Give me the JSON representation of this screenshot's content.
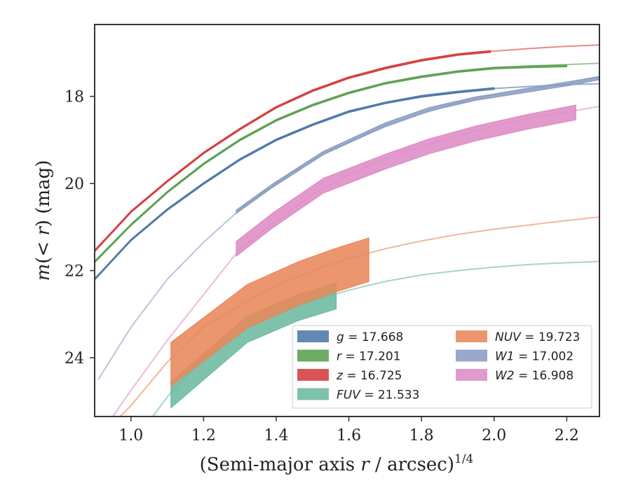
{
  "chart_data": {
    "type": "line",
    "xlabel": "(Semi-major axis r / arcsec)",
    "xlabel_italic": "r",
    "xlabel_parts": [
      "(Semi-major axis ",
      "r",
      " / arcsec)"
    ],
    "xlabel_superscript": "1/4",
    "ylabel_parts": [
      "m",
      "(< ",
      "r",
      ") (mag)"
    ],
    "ylabel": "m(< r) (mag)",
    "xlim": [
      0.9,
      2.29
    ],
    "ylim": [
      25.35,
      16.35
    ],
    "y_inverted": true,
    "xticks": [
      1.0,
      1.2,
      1.4,
      1.6,
      1.8,
      2.0,
      2.2
    ],
    "xtick_labels": [
      "1.0",
      "1.2",
      "1.4",
      "1.6",
      "1.8",
      "2.0",
      "2.2"
    ],
    "yticks": [
      18,
      20,
      22,
      24
    ],
    "ytick_labels": [
      "18",
      "20",
      "22",
      "24"
    ],
    "grid": false,
    "legend_position": "lower-right",
    "series": [
      {
        "name": "g = 17.668",
        "name_var": "g",
        "name_value": "17.668",
        "color": "#4c78a8",
        "model_x": [
          0.9,
          1.0,
          1.1,
          1.2,
          1.3,
          1.4,
          1.5,
          1.6,
          1.7,
          1.8,
          1.9,
          2.0,
          2.1,
          2.2,
          2.29
        ],
        "model_y": [
          22.2,
          21.3,
          20.6,
          20.0,
          19.45,
          19.0,
          18.65,
          18.35,
          18.15,
          18.0,
          17.9,
          17.82,
          17.77,
          17.73,
          17.71
        ],
        "obs_x": [
          0.9,
          1.0,
          1.1,
          1.2,
          1.3,
          1.4,
          1.5,
          1.6,
          1.7,
          1.8,
          1.9,
          2.0
        ],
        "obs_y": [
          22.2,
          21.3,
          20.6,
          20.0,
          19.45,
          19.0,
          18.65,
          18.35,
          18.15,
          18.0,
          17.9,
          17.82
        ],
        "obs_err": 0.02
      },
      {
        "name": "r = 17.201",
        "name_var": "r",
        "name_value": "17.201",
        "color": "#59a14f",
        "model_x": [
          0.9,
          1.0,
          1.1,
          1.2,
          1.3,
          1.4,
          1.5,
          1.6,
          1.7,
          1.8,
          1.9,
          2.0,
          2.1,
          2.2,
          2.29
        ],
        "model_y": [
          21.8,
          20.95,
          20.2,
          19.55,
          19.0,
          18.55,
          18.2,
          17.92,
          17.7,
          17.55,
          17.43,
          17.35,
          17.3,
          17.27,
          17.24
        ],
        "obs_x": [
          0.9,
          1.0,
          1.1,
          1.2,
          1.3,
          1.4,
          1.5,
          1.6,
          1.7,
          1.8,
          1.9,
          2.0,
          2.1,
          2.2
        ],
        "obs_y": [
          21.8,
          20.95,
          20.2,
          19.55,
          19.0,
          18.55,
          18.2,
          17.92,
          17.7,
          17.55,
          17.43,
          17.35,
          17.32,
          17.3
        ],
        "obs_err": 0.02
      },
      {
        "name": "z = 16.725",
        "name_var": "z",
        "name_value": "16.725",
        "color": "#d43d3d",
        "model_x": [
          0.9,
          1.0,
          1.1,
          1.2,
          1.3,
          1.4,
          1.5,
          1.6,
          1.7,
          1.8,
          1.9,
          2.0,
          2.1,
          2.2,
          2.29
        ],
        "model_y": [
          21.55,
          20.65,
          19.95,
          19.3,
          18.75,
          18.25,
          17.87,
          17.57,
          17.35,
          17.17,
          17.04,
          16.96,
          16.9,
          16.85,
          16.82
        ],
        "obs_x": [
          0.9,
          1.0,
          1.1,
          1.2,
          1.3,
          1.4,
          1.5,
          1.6,
          1.7,
          1.8,
          1.9,
          1.99
        ],
        "obs_y": [
          21.55,
          20.65,
          19.95,
          19.3,
          18.75,
          18.25,
          17.87,
          17.57,
          17.35,
          17.17,
          17.04,
          16.97
        ],
        "obs_err": 0.02
      },
      {
        "name": "FUV = 21.533",
        "name_var": "FUV",
        "name_value": "21.533",
        "color": "#6db99f",
        "model_x": [
          1.06,
          1.1,
          1.2,
          1.3,
          1.4,
          1.5,
          1.6,
          1.7,
          1.8,
          1.9,
          2.0,
          2.1,
          2.2,
          2.29
        ],
        "model_y": [
          25.35,
          24.9,
          24.0,
          23.4,
          23.0,
          22.7,
          22.45,
          22.25,
          22.1,
          22.0,
          21.92,
          21.86,
          21.82,
          21.79
        ],
        "obs_x": [
          1.11,
          1.32,
          1.46,
          1.565
        ],
        "obs_y": [
          24.85,
          23.35,
          22.85,
          22.58
        ],
        "obs_err": 0.3
      },
      {
        "name": "NUV = 19.723",
        "name_var": "NUV",
        "name_value": "19.723",
        "color": "#e8875a",
        "model_x": [
          0.97,
          1.0,
          1.1,
          1.2,
          1.3,
          1.4,
          1.5,
          1.6,
          1.7,
          1.8,
          1.9,
          2.0,
          2.1,
          2.2,
          2.29
        ],
        "model_y": [
          25.35,
          25.1,
          24.1,
          23.3,
          22.8,
          22.35,
          22.0,
          21.72,
          21.5,
          21.32,
          21.17,
          21.05,
          20.95,
          20.85,
          20.77
        ],
        "obs_x": [
          1.11,
          1.32,
          1.46,
          1.56,
          1.655
        ],
        "obs_y": [
          24.15,
          22.82,
          22.3,
          22.0,
          21.75
        ],
        "obs_err": 0.5
      },
      {
        "name": "W1 = 17.002",
        "name_var": "W1",
        "name_value": "17.002",
        "color": "#8c9dc2",
        "model_x": [
          0.91,
          1.0,
          1.1,
          1.2,
          1.3,
          1.4,
          1.5,
          1.6,
          1.7,
          1.8,
          1.9,
          2.0,
          2.1,
          2.2,
          2.29
        ],
        "model_y": [
          24.5,
          23.3,
          22.2,
          21.35,
          20.6,
          20.0,
          19.45,
          19.05,
          18.7,
          18.4,
          18.15,
          17.95,
          17.8,
          17.67,
          17.55
        ],
        "obs_x": [
          1.29,
          1.39,
          1.53,
          1.7,
          1.82,
          1.95,
          2.08,
          2.2,
          2.29
        ],
        "obs_y": [
          20.65,
          20.05,
          19.3,
          18.65,
          18.3,
          18.05,
          17.88,
          17.72,
          17.58
        ],
        "obs_err": 0.04
      },
      {
        "name": "W2 = 16.908",
        "name_var": "W2",
        "name_value": "16.908",
        "color": "#de8cc5",
        "model_x": [
          0.95,
          1.0,
          1.1,
          1.2,
          1.3,
          1.4,
          1.5,
          1.6,
          1.7,
          1.8,
          1.9,
          2.0,
          2.1,
          2.2,
          2.29
        ],
        "model_y": [
          25.35,
          24.75,
          23.6,
          22.55,
          21.5,
          20.85,
          20.25,
          19.8,
          19.43,
          19.15,
          18.9,
          18.68,
          18.5,
          18.36,
          18.23
        ],
        "obs_x": [
          1.29,
          1.39,
          1.53,
          1.7,
          1.82,
          1.95,
          2.1,
          2.225
        ],
        "obs_y": [
          21.5,
          20.85,
          20.05,
          19.5,
          19.15,
          18.85,
          18.57,
          18.37
        ],
        "obs_err": 0.17
      }
    ]
  }
}
